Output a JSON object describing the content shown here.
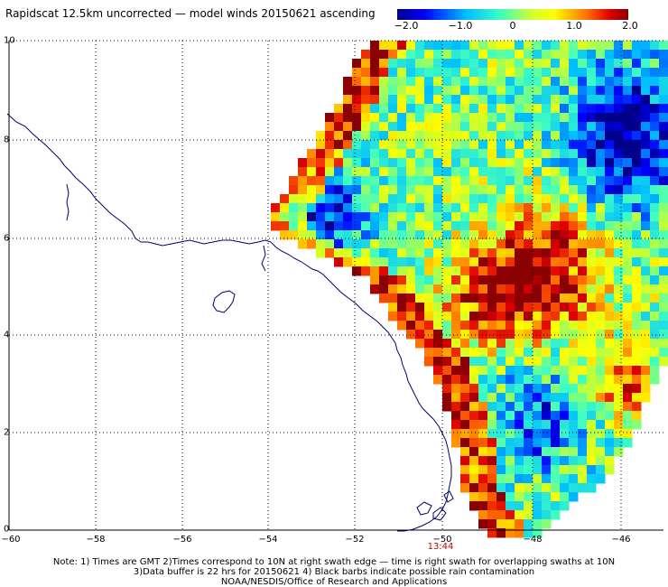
{
  "title": "Rapidscat 12.5km uncorrected — model winds 20150621 ascending",
  "colorbar": {
    "labels": [
      "−2.0",
      "−1.0",
      "0",
      "1.0",
      "2.0"
    ],
    "min": -2.0,
    "max": 2.0
  },
  "axes": {
    "x_ticks": [
      "−60",
      "−58",
      "−56",
      "−54",
      "−52",
      "−50",
      "−48",
      "−46"
    ],
    "y_ticks": [
      "0",
      "2",
      "4",
      "6",
      "8",
      "10"
    ],
    "lon_range": [
      -60,
      -45
    ],
    "lat_range": [
      0,
      10
    ]
  },
  "time_label": "13:44",
  "notes": [
    "Note: 1) Times are GMT 2)Times correspond to 10N at right swath edge — time is right swath for overlapping swaths at 10N",
    "3)Data buffer is 22 hrs for 20150621 4) Black barbs indicate possible rain contamination",
    "NOAA/NESDIS/Office of Research and Applications"
  ],
  "colors": {
    "coastline": "#000066",
    "gridline": "#000033",
    "time_label": "#c00000"
  }
}
